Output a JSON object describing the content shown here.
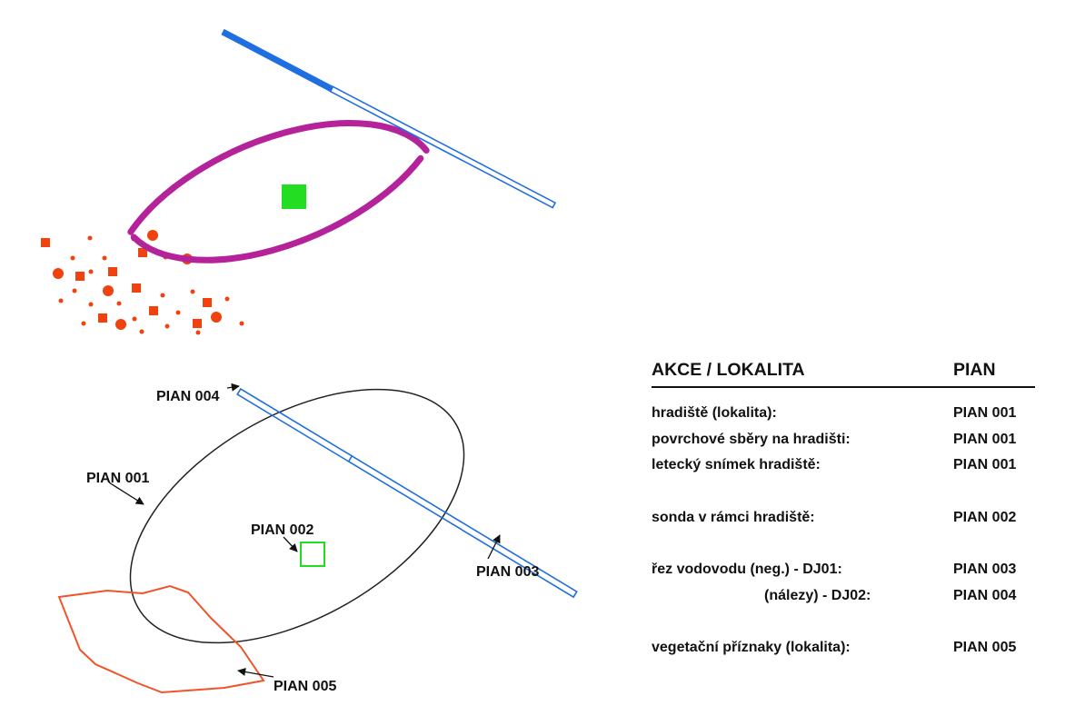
{
  "colors": {
    "fortress_outline": "#b5239a",
    "trench": "#1f6fe0",
    "probe": "#22dd22",
    "surface_finds": "#f0410f",
    "outline": "#222222",
    "vegetation": "#f0552a"
  },
  "labels": {
    "pian_004": "PIAN 004",
    "pian_001": "PIAN 001",
    "pian_002": "PIAN 002",
    "pian_003": "PIAN 003",
    "pian_005": "PIAN 005"
  },
  "legend": {
    "header_action": "AKCE / LOKALITA",
    "header_pian": "PIAN",
    "rows": [
      {
        "action": "hradiště (lokalita):",
        "pian": "PIAN 001"
      },
      {
        "action": "povrchové sběry na hradišti:",
        "pian": "PIAN 001"
      },
      {
        "action": "letecký snímek hradiště:",
        "pian": "PIAN 001"
      },
      {
        "action": "sonda v rámci hradiště:",
        "pian": "PIAN 002"
      },
      {
        "action": "řez vodovodu (neg.) - DJ01:",
        "pian": "PIAN 003"
      },
      {
        "action": "(nálezy) - DJ02:",
        "pian": "PIAN 004"
      },
      {
        "action": "vegetační příznaky (lokalita):",
        "pian": "PIAN 005"
      }
    ]
  }
}
